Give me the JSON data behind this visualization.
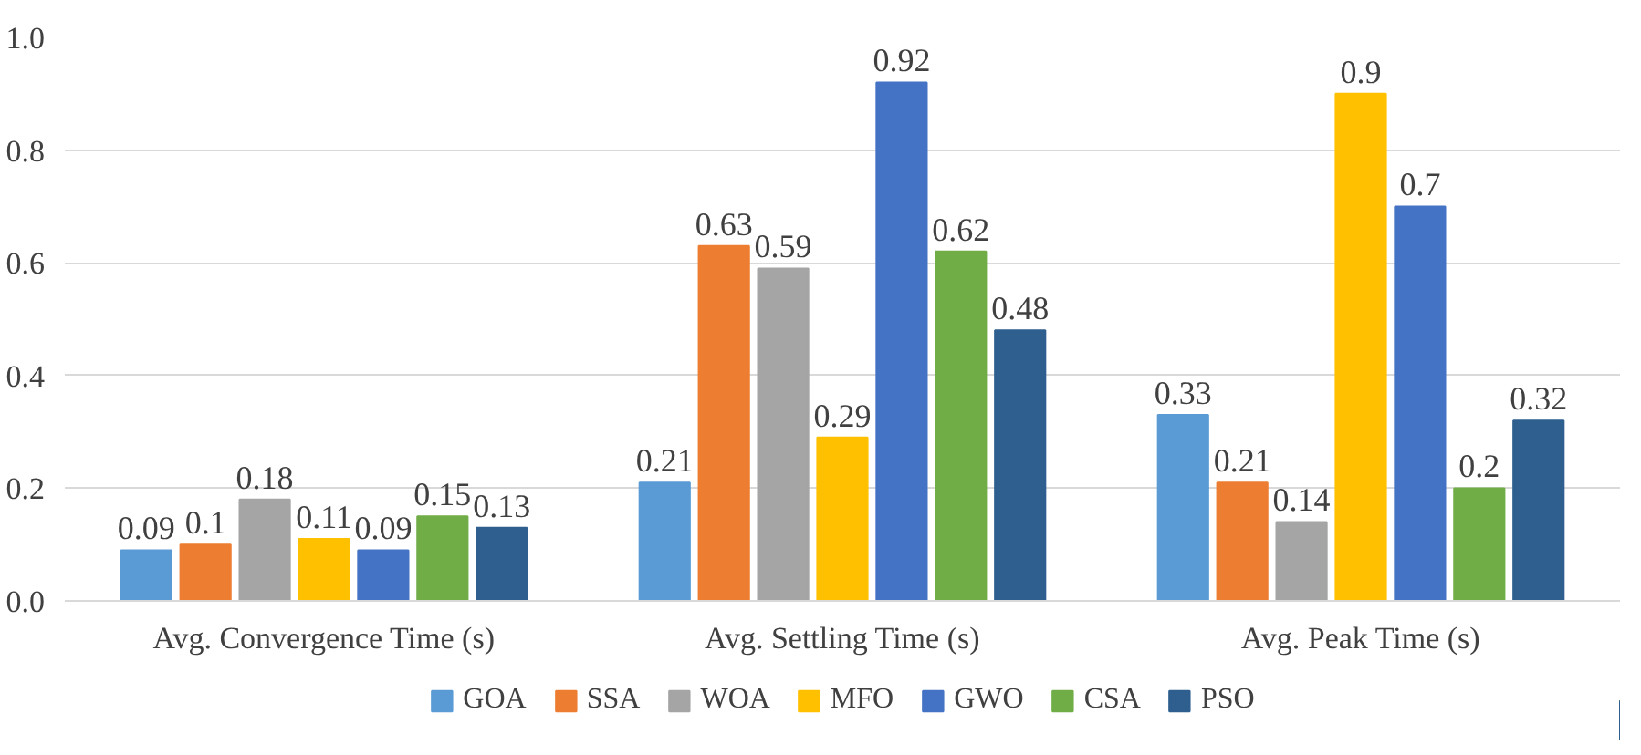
{
  "chart_data": {
    "type": "bar",
    "categories": [
      "Avg. Convergence Time (s)",
      "Avg. Settling Time (s)",
      "Avg. Peak Time (s)"
    ],
    "series": [
      {
        "name": "GOA",
        "color": "#5b9bd5",
        "values": [
          0.09,
          0.21,
          0.33
        ]
      },
      {
        "name": "SSA",
        "color": "#ed7d31",
        "values": [
          0.1,
          0.63,
          0.21
        ]
      },
      {
        "name": "WOA",
        "color": "#a5a5a5",
        "values": [
          0.18,
          0.59,
          0.14
        ]
      },
      {
        "name": "MFO",
        "color": "#ffc000",
        "values": [
          0.11,
          0.29,
          0.9
        ]
      },
      {
        "name": "GWO",
        "color": "#4472c4",
        "values": [
          0.09,
          0.92,
          0.7
        ]
      },
      {
        "name": "CSA",
        "color": "#70ad47",
        "values": [
          0.15,
          0.62,
          0.2
        ]
      },
      {
        "name": "PSO",
        "color": "#2e5f8f",
        "values": [
          0.13,
          0.48,
          0.32
        ]
      }
    ],
    "ylim": [
      0,
      1
    ],
    "yticks": [
      {
        "value": 0,
        "label": "0.0"
      },
      {
        "value": 0.2,
        "label": "0.2"
      },
      {
        "value": 0.4,
        "label": "0.4"
      },
      {
        "value": 0.6,
        "label": "0.6"
      },
      {
        "value": 0.8,
        "label": "0.8"
      },
      {
        "value": 1,
        "label": "1.0"
      }
    ],
    "grid": "y",
    "legend": "bottom",
    "data_labels": true
  }
}
